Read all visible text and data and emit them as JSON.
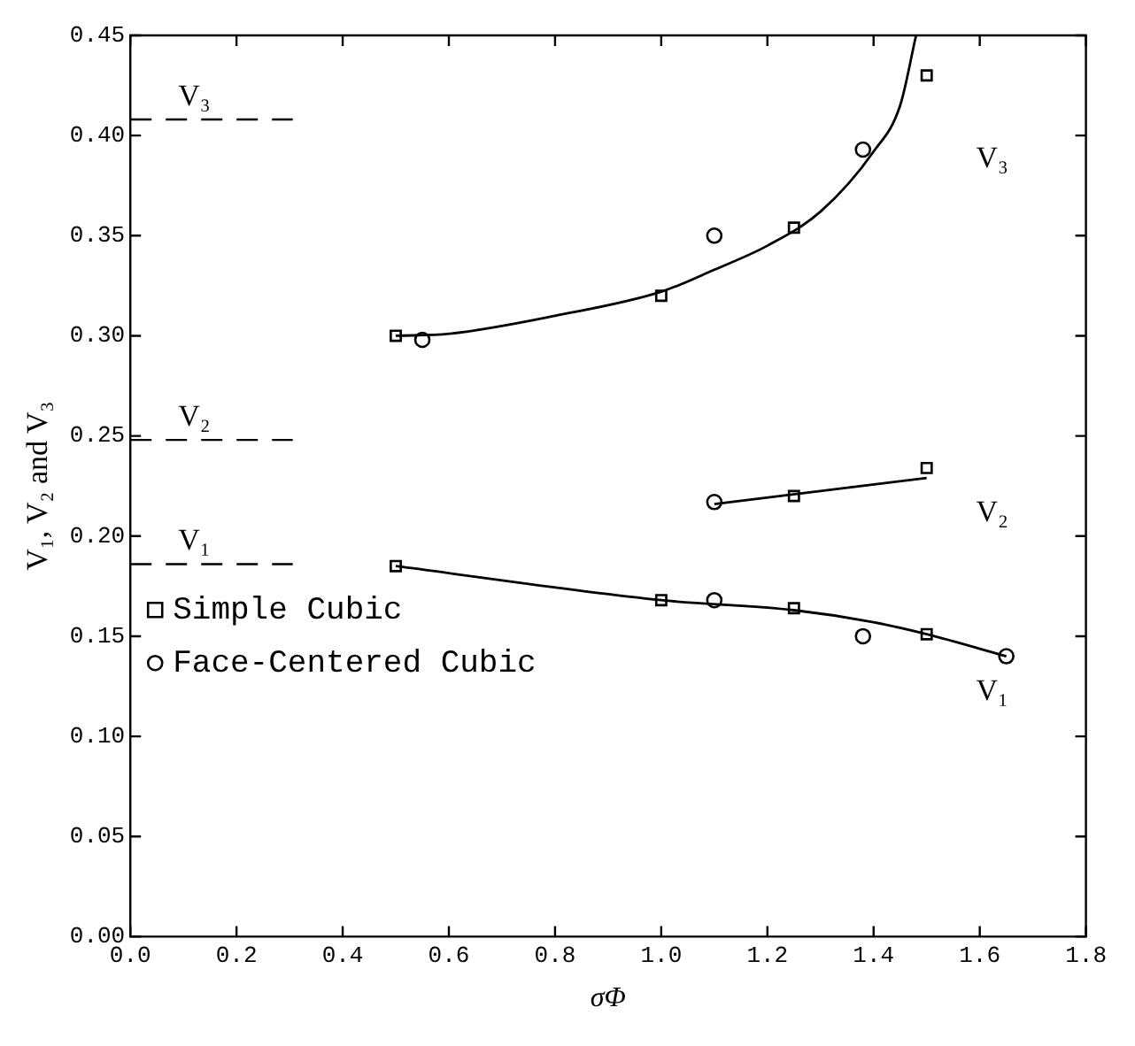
{
  "chart_data": {
    "type": "scatter",
    "xlabel": "σΦ",
    "ylabel": "V₁, V₂ and V₃",
    "xlim": [
      0,
      1.8
    ],
    "xticks": [
      {
        "value": 0,
        "label": "0.0"
      },
      {
        "value": 0.2,
        "label": "0.2"
      },
      {
        "value": 0.4,
        "label": "0.4"
      },
      {
        "value": 0.6,
        "label": "0.6"
      },
      {
        "value": 0.8,
        "label": "0.8"
      },
      {
        "value": 1,
        "label": "1.0"
      },
      {
        "value": 1.2,
        "label": "1.2"
      },
      {
        "value": 1.4,
        "label": "1.4"
      },
      {
        "value": 1.6,
        "label": "1.6"
      },
      {
        "value": 1.8,
        "label": "1.8"
      }
    ],
    "ylim": [
      0,
      0.45
    ],
    "yticks": [
      {
        "value": 0,
        "label": "0.00"
      },
      {
        "value": 0.05,
        "label": "0.05"
      },
      {
        "value": 0.1,
        "label": "0.10"
      },
      {
        "value": 0.15,
        "label": "0.15"
      },
      {
        "value": 0.2,
        "label": "0.20"
      },
      {
        "value": 0.25,
        "label": "0.25"
      },
      {
        "value": 0.3,
        "label": "0.30"
      },
      {
        "value": 0.35,
        "label": "0.35"
      },
      {
        "value": 0.4,
        "label": "0.40"
      },
      {
        "value": 0.45,
        "label": "0.45"
      }
    ],
    "grid": false,
    "legend": "left",
    "series": [
      {
        "name": "Simple Cubic",
        "marker": "square",
        "color": "#000000",
        "x": [
          0.5,
          1.0,
          1.25,
          1.5,
          1.25,
          1.5,
          0.5,
          1.0,
          1.25,
          1.5
        ],
        "values": [
          0.3,
          0.32,
          0.354,
          0.43,
          0.22,
          0.234,
          0.185,
          0.168,
          0.164,
          0.151
        ]
      },
      {
        "name": "Face-Centered Cubic",
        "marker": "circle",
        "color": "#000000",
        "x": [
          0.55,
          1.1,
          1.38,
          1.1,
          1.1,
          1.38,
          1.65
        ],
        "values": [
          0.298,
          0.35,
          0.393,
          0.217,
          0.168,
          0.15,
          0.14
        ]
      },
      {
        "type": "line",
        "marker": "none",
        "line_style": "solid",
        "color": "#000000",
        "x": [
          0.5,
          0.6,
          0.8,
          1.0,
          1.1,
          1.2,
          1.3,
          1.4,
          1.45,
          1.48
        ],
        "values": [
          0.3,
          0.301,
          0.31,
          0.322,
          0.333,
          0.345,
          0.362,
          0.392,
          0.415,
          0.45
        ]
      },
      {
        "type": "line",
        "marker": "none",
        "line_style": "solid",
        "color": "#000000",
        "x": [
          1.1,
          1.5
        ],
        "values": [
          0.216,
          0.229
        ]
      },
      {
        "type": "line",
        "marker": "none",
        "line_style": "solid",
        "color": "#000000",
        "x": [
          0.5,
          1.0,
          1.25,
          1.4,
          1.5,
          1.65
        ],
        "values": [
          0.185,
          0.168,
          0.163,
          0.157,
          0.151,
          0.14
        ]
      }
    ],
    "ref_lines": [
      {
        "axis": "y",
        "value": 0.408,
        "label": "V₃",
        "line_style": "dashed",
        "color": "#000000"
      },
      {
        "axis": "y",
        "value": 0.248,
        "label": "V₂",
        "line_style": "dashed",
        "color": "#000000"
      },
      {
        "axis": "y",
        "value": 0.186,
        "label": "V₁",
        "line_style": "dashed",
        "color": "#000000"
      }
    ],
    "annotations": [
      "V₃",
      "V₂",
      "V₁"
    ]
  }
}
